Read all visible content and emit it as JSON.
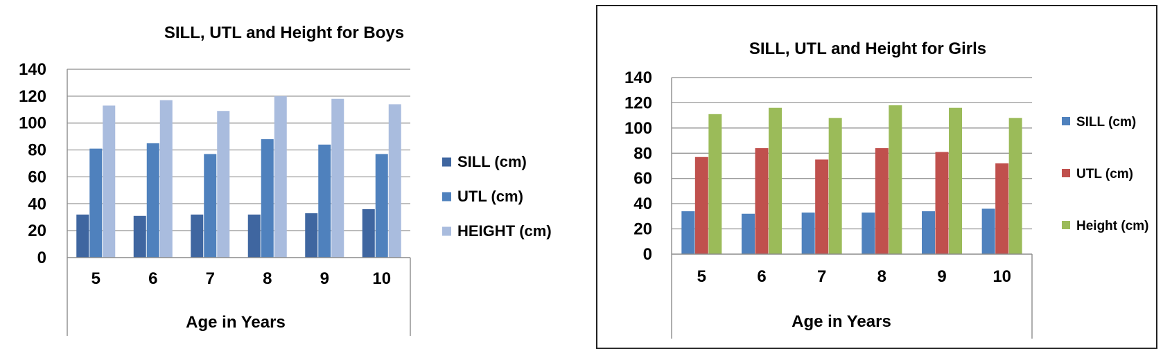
{
  "chart_data": [
    {
      "type": "bar",
      "title": "SILL, UTL and Height for Boys",
      "xlabel": "Age in Years",
      "ylabel": "",
      "ylim": [
        0,
        140
      ],
      "yticks": [
        0,
        20,
        40,
        60,
        80,
        100,
        120,
        140
      ],
      "grid": true,
      "legend_position": "right",
      "categories": [
        "5",
        "6",
        "7",
        "8",
        "9",
        "10"
      ],
      "series": [
        {
          "name": "SILL (cm)",
          "color": "#3f66a0",
          "values": [
            32,
            31,
            32,
            32,
            33,
            36
          ]
        },
        {
          "name": "UTL (cm)",
          "color": "#4f81bd",
          "values": [
            81,
            85,
            77,
            88,
            84,
            77
          ]
        },
        {
          "name": "HEIGHT (cm)",
          "color": "#a9bcde",
          "values": [
            113,
            117,
            109,
            120,
            118,
            114
          ]
        }
      ]
    },
    {
      "type": "bar",
      "title": "SILL, UTL and Height for Girls",
      "xlabel": "Age in Years",
      "ylabel": "",
      "ylim": [
        0,
        140
      ],
      "yticks": [
        0,
        20,
        40,
        60,
        80,
        100,
        120,
        140
      ],
      "grid": true,
      "legend_position": "right",
      "categories": [
        "5",
        "6",
        "7",
        "8",
        "9",
        "10"
      ],
      "series": [
        {
          "name": "SILL (cm)",
          "color": "#4f81bd",
          "values": [
            34,
            32,
            33,
            33,
            34,
            36
          ]
        },
        {
          "name": "UTL (cm)",
          "color": "#c0504d",
          "values": [
            77,
            84,
            75,
            84,
            81,
            72
          ]
        },
        {
          "name": "Height (cm)",
          "color": "#9bbb59",
          "values": [
            111,
            116,
            108,
            118,
            116,
            108
          ]
        }
      ]
    }
  ]
}
